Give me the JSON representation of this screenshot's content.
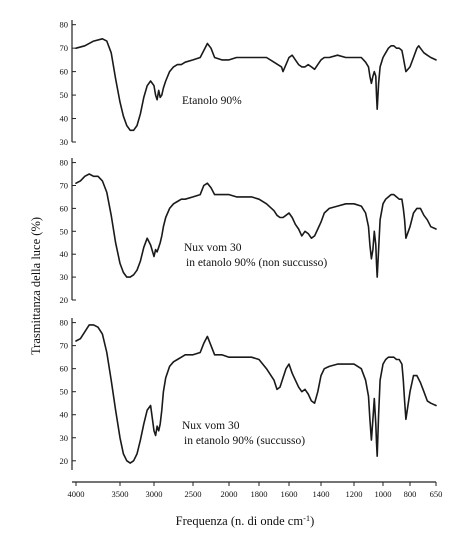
{
  "chart_data": {
    "type": "line",
    "xlabel": "Frequenza (n. di onde cm-1)",
    "xlabel_main": "Frequenza (n. di onde cm",
    "xlabel_sup": "-1",
    "xlabel_close": ")",
    "ylabel": "Trasmittanza della luce (%)",
    "x_ticks": [
      "4000",
      "3500",
      "3000",
      "2500",
      "2000",
      "1800",
      "1600",
      "1400",
      "1200",
      "1000",
      "800",
      "650"
    ],
    "x_tick_values": [
      4000,
      3500,
      3000,
      2500,
      2000,
      1800,
      1600,
      1400,
      1200,
      1000,
      800,
      650
    ],
    "panels": [
      {
        "label_lines": [
          "Etanolo 90%"
        ],
        "y_ticks": [
          "80",
          "70",
          "60",
          "50",
          "40",
          "30"
        ],
        "y_tick_values": [
          80,
          70,
          60,
          50,
          40,
          30
        ],
        "ylim": [
          30,
          82
        ],
        "series": [
          {
            "x": [
              4000,
              3900,
              3800,
              3700,
              3650,
              3600,
              3550,
              3500,
              3450,
              3400,
              3350,
              3300,
              3250,
              3200,
              3150,
              3100,
              3050,
              3000,
              2980,
              2960,
              2940,
              2920,
              2900,
              2880,
              2850,
              2800,
              2750,
              2700,
              2650,
              2600,
              2500,
              2400,
              2350,
              2300,
              2250,
              2200,
              2100,
              2000,
              1950,
              1900,
              1850,
              1800,
              1750,
              1700,
              1650,
              1640,
              1620,
              1600,
              1580,
              1560,
              1540,
              1520,
              1500,
              1480,
              1460,
              1440,
              1420,
              1400,
              1380,
              1350,
              1300,
              1250,
              1200,
              1150,
              1120,
              1100,
              1090,
              1080,
              1070,
              1060,
              1050,
              1045,
              1040,
              1030,
              1020,
              1000,
              980,
              960,
              940,
              920,
              900,
              880,
              860,
              850,
              840,
              830,
              800,
              780,
              760,
              750,
              740,
              720,
              700,
              680,
              650
            ],
            "y": [
              70,
              71,
              73,
              74,
              73,
              68,
              57,
              47,
              41,
              37,
              35,
              35,
              37,
              42,
              49,
              54,
              56,
              54,
              50,
              48,
              52,
              49,
              50,
              53,
              56,
              60,
              62,
              63,
              63,
              64,
              65,
              66,
              69,
              72,
              70,
              66,
              65,
              65,
              66,
              66,
              66,
              66,
              66,
              64,
              62,
              60,
              63,
              66,
              67,
              65,
              63,
              62,
              62,
              63,
              62,
              61,
              63,
              65,
              66,
              66,
              67,
              66,
              66,
              66,
              64,
              62,
              58,
              55,
              58,
              60,
              58,
              50,
              44,
              55,
              62,
              66,
              68,
              70,
              71,
              71,
              70,
              70,
              69,
              66,
              63,
              60,
              62,
              66,
              70,
              71,
              70,
              68,
              67,
              66,
              65
            ]
          }
        ]
      },
      {
        "label_lines": [
          "Nux vom 30",
          "in etanolo 90% (non succusso)"
        ],
        "y_ticks": [
          "80",
          "70",
          "60",
          "50",
          "40",
          "30",
          "20"
        ],
        "y_tick_values": [
          80,
          70,
          60,
          50,
          40,
          30,
          20
        ],
        "ylim": [
          20,
          82
        ],
        "series": [
          {
            "x": [
              4000,
              3950,
              3900,
              3850,
              3800,
              3750,
              3700,
              3650,
              3600,
              3550,
              3500,
              3450,
              3400,
              3350,
              3300,
              3250,
              3200,
              3150,
              3100,
              3050,
              3000,
              2980,
              2960,
              2940,
              2920,
              2900,
              2880,
              2850,
              2800,
              2750,
              2700,
              2650,
              2600,
              2500,
              2400,
              2350,
              2300,
              2250,
              2200,
              2100,
              2000,
              1950,
              1900,
              1850,
              1800,
              1750,
              1700,
              1680,
              1660,
              1640,
              1620,
              1600,
              1580,
              1560,
              1540,
              1520,
              1500,
              1480,
              1460,
              1440,
              1420,
              1400,
              1380,
              1350,
              1300,
              1250,
              1200,
              1150,
              1120,
              1100,
              1090,
              1080,
              1070,
              1060,
              1050,
              1045,
              1040,
              1030,
              1020,
              1000,
              980,
              960,
              940,
              920,
              900,
              880,
              860,
              850,
              840,
              830,
              800,
              780,
              760,
              740,
              720,
              700,
              680,
              650
            ],
            "y": [
              71,
              72,
              74,
              75,
              74,
              74,
              72,
              67,
              57,
              45,
              36,
              32,
              30,
              30,
              31,
              33,
              37,
              43,
              47,
              44,
              39,
              42,
              41,
              43,
              45,
              48,
              52,
              56,
              60,
              62,
              63,
              64,
              64,
              65,
              66,
              70,
              71,
              69,
              66,
              66,
              66,
              65,
              65,
              65,
              64,
              62,
              59,
              57,
              56,
              56,
              57,
              58,
              56,
              53,
              51,
              48,
              50,
              49,
              47,
              48,
              51,
              54,
              58,
              60,
              61,
              62,
              62,
              61,
              58,
              52,
              44,
              38,
              42,
              50,
              44,
              36,
              30,
              42,
              55,
              62,
              64,
              65,
              66,
              66,
              65,
              64,
              64,
              60,
              55,
              47,
              52,
              58,
              60,
              60,
              57,
              55,
              52,
              51
            ]
          }
        ]
      },
      {
        "label_lines": [
          "Nux vom 30",
          "in etanolo 90% (succusso)"
        ],
        "y_ticks": [
          "80",
          "70",
          "60",
          "50",
          "40",
          "30",
          "20"
        ],
        "y_tick_values": [
          80,
          70,
          60,
          50,
          40,
          30,
          20
        ],
        "ylim": [
          16,
          82
        ],
        "series": [
          {
            "x": [
              4000,
              3950,
              3900,
              3850,
              3800,
              3750,
              3700,
              3650,
              3600,
              3550,
              3500,
              3450,
              3400,
              3350,
              3300,
              3250,
              3200,
              3150,
              3100,
              3050,
              3000,
              2980,
              2960,
              2940,
              2920,
              2900,
              2880,
              2850,
              2800,
              2750,
              2700,
              2650,
              2600,
              2500,
              2400,
              2350,
              2300,
              2250,
              2200,
              2100,
              2000,
              1950,
              1900,
              1850,
              1800,
              1750,
              1700,
              1680,
              1660,
              1640,
              1620,
              1600,
              1580,
              1560,
              1540,
              1520,
              1500,
              1480,
              1460,
              1440,
              1420,
              1400,
              1380,
              1350,
              1300,
              1250,
              1200,
              1150,
              1120,
              1100,
              1090,
              1080,
              1070,
              1060,
              1050,
              1045,
              1040,
              1030,
              1020,
              1000,
              980,
              960,
              940,
              920,
              900,
              880,
              860,
              850,
              840,
              830,
              800,
              780,
              760,
              740,
              720,
              700,
              680,
              650
            ],
            "y": [
              72,
              73,
              76,
              79,
              79,
              78,
              75,
              67,
              55,
              42,
              30,
              23,
              20,
              19,
              20,
              23,
              29,
              36,
              42,
              44,
              33,
              31,
              35,
              33,
              36,
              42,
              50,
              56,
              61,
              63,
              64,
              65,
              66,
              66,
              67,
              71,
              74,
              70,
              66,
              66,
              65,
              65,
              65,
              65,
              64,
              60,
              55,
              51,
              52,
              56,
              60,
              62,
              58,
              55,
              52,
              50,
              51,
              49,
              46,
              45,
              50,
              57,
              60,
              61,
              62,
              62,
              62,
              60,
              55,
              48,
              38,
              29,
              38,
              47,
              36,
              28,
              22,
              40,
              55,
              62,
              64,
              65,
              65,
              65,
              64,
              64,
              62,
              55,
              46,
              38,
              50,
              57,
              57,
              54,
              50,
              46,
              45,
              44
            ]
          }
        ]
      }
    ]
  }
}
